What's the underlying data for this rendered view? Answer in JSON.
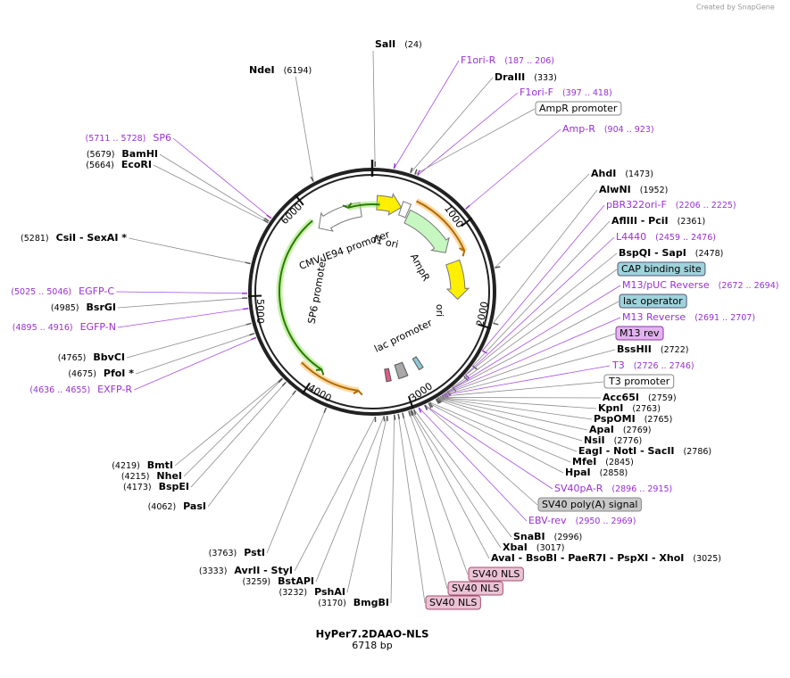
{
  "watermark": "Created by SnapGene",
  "title": "HyPer7.2DAAO-NLS",
  "size": "6718 bp",
  "map_labels": [
    "f1 ori",
    "AmpR",
    "ori",
    "lac promoter",
    "CMV IE94 promoter",
    "SP6 promoter"
  ],
  "tick_labels": [
    "1000",
    "2000",
    "3000",
    "4000",
    "5000",
    "6000"
  ],
  "sites": [
    {
      "name": "SalI",
      "pos": "(24)"
    },
    {
      "name": "F1ori-R",
      "pos": "(187 .. 206)"
    },
    {
      "name": "DraIII",
      "pos": "(333)"
    },
    {
      "name": "F1ori-F",
      "pos": "(397 .. 418)"
    },
    {
      "name": "AmpR promoter"
    },
    {
      "name": "Amp-R",
      "pos": "(904 .. 923)"
    },
    {
      "name": "AhdI",
      "pos": "(1473)"
    },
    {
      "name": "AlwNI",
      "pos": "(1952)"
    },
    {
      "name": "pBR322ori-F",
      "pos": "(2206 .. 2225)"
    },
    {
      "name": "AflIII  - PciI",
      "pos": "(2361)"
    },
    {
      "name": "L4440",
      "pos": "(2459 .. 2476)"
    },
    {
      "name": "BspQI  - SapI",
      "pos": "(2478)"
    },
    {
      "name": "CAP binding site"
    },
    {
      "name": "M13/pUC Reverse",
      "pos": "(2672 .. 2694)"
    },
    {
      "name": "lac operator"
    },
    {
      "name": "M13 Reverse",
      "pos": "(2691 .. 2707)"
    },
    {
      "name": "M13 rev"
    },
    {
      "name": "BssHII",
      "pos": "(2722)"
    },
    {
      "name": "T3",
      "pos": "(2726 .. 2746)"
    },
    {
      "name": "T3 promoter"
    },
    {
      "name": "Acc65I",
      "pos": "(2759)"
    },
    {
      "name": "KpnI",
      "pos": "(2763)"
    },
    {
      "name": "PspOMI",
      "pos": "(2765)"
    },
    {
      "name": "ApaI",
      "pos": "(2769)"
    },
    {
      "name": "NsiI",
      "pos": "(2776)"
    },
    {
      "name": "EagI  - NotI  - SacII",
      "pos": "(2786)"
    },
    {
      "name": "MfeI",
      "pos": "(2845)"
    },
    {
      "name": "HpaI",
      "pos": "(2858)"
    },
    {
      "name": "SV40pA-R",
      "pos": "(2896 .. 2915)"
    },
    {
      "name": "SV40 poly(A) signal"
    },
    {
      "name": "EBV-rev",
      "pos": "(2950 .. 2969)"
    },
    {
      "name": "SnaBI",
      "pos": "(2996)"
    },
    {
      "name": "XbaI",
      "pos": "(3017)"
    },
    {
      "name": "AvaI  - BsoBI  - PaeR7I  - PspXI  - XhoI",
      "pos": "(3025)"
    },
    {
      "name": "SV40 NLS"
    },
    {
      "name": "SV40 NLS"
    },
    {
      "name": "SV40 NLS"
    },
    {
      "name": "BmgBI",
      "pos": "(3170)"
    },
    {
      "name": "PshAI",
      "pos": "(3232)"
    },
    {
      "name": "BstAPI",
      "pos": "(3259)"
    },
    {
      "name": "AvrII  - StyI",
      "pos": "(3333)"
    },
    {
      "name": "PstI",
      "pos": "(3763)"
    },
    {
      "name": "PasI",
      "pos": "(4062)"
    },
    {
      "name": "BspEI",
      "pos": "(4173)"
    },
    {
      "name": "NheI",
      "pos": "(4215)"
    },
    {
      "name": "BmtI",
      "pos": "(4219)"
    },
    {
      "name": "EXFP-R",
      "pos": "(4636 .. 4655)"
    },
    {
      "name": "PfoI *",
      "pos": "(4675)"
    },
    {
      "name": "BbvCI",
      "pos": "(4765)"
    },
    {
      "name": "EGFP-N",
      "pos": "(4895 .. 4916)"
    },
    {
      "name": "BsrGI",
      "pos": "(4985)"
    },
    {
      "name": "EGFP-C",
      "pos": "(5025 .. 5046)"
    },
    {
      "name": "CsiI  - SexAI *",
      "pos": "(5281)"
    },
    {
      "name": "EcoRI",
      "pos": "(5664)"
    },
    {
      "name": "BamHI",
      "pos": "(5679)"
    },
    {
      "name": "SP6",
      "pos": "(5711 .. 5728)"
    },
    {
      "name": "NdeI",
      "pos": "(6194)"
    }
  ]
}
